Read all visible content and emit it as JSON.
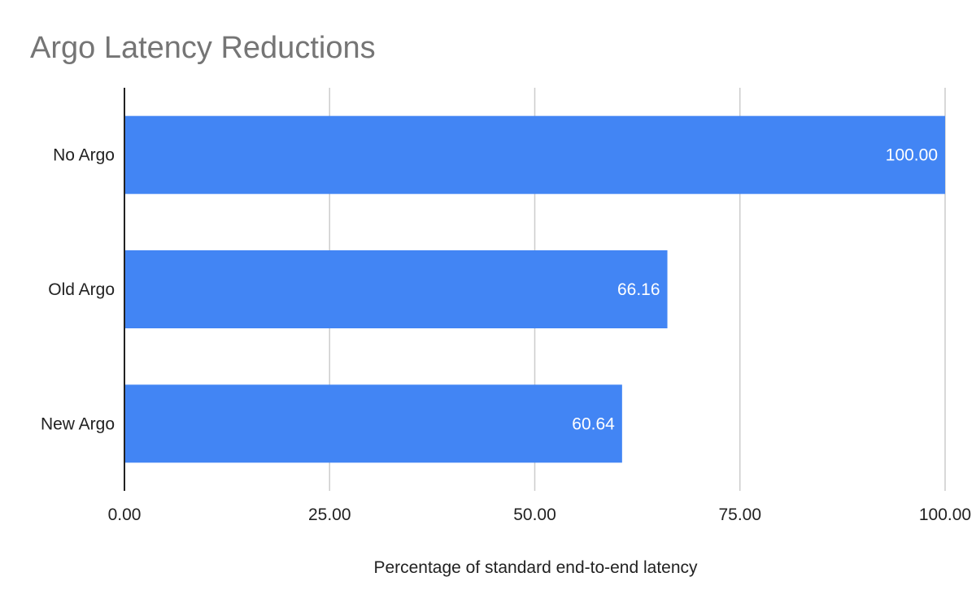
{
  "chart_data": {
    "type": "bar",
    "orientation": "horizontal",
    "title": "Argo Latency Reductions",
    "xlabel": "Percentage of standard end-to-end latency",
    "ylabel": "",
    "categories": [
      "No Argo",
      "Old Argo",
      "New Argo"
    ],
    "values": [
      100.0,
      66.16,
      60.64
    ],
    "data_labels": [
      "100.00",
      "66.16",
      "60.64"
    ],
    "xlim": [
      0,
      100
    ],
    "x_ticks": [
      0,
      25,
      50,
      75,
      100
    ],
    "x_tick_labels": [
      "0.00",
      "25.00",
      "50.00",
      "75.00",
      "100.00"
    ],
    "grid": "vertical",
    "legend": "none",
    "bar_color": "#4285f4"
  }
}
